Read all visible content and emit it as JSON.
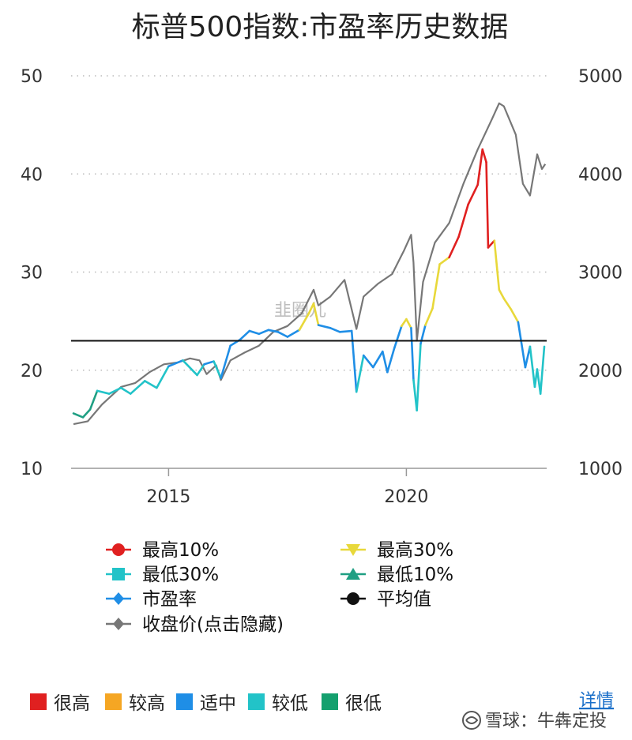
{
  "chart_data": {
    "type": "line",
    "title": "标普500指数:市盈率历史数据",
    "x_ticks": [
      2015,
      2020
    ],
    "x_range": [
      2012.95,
      2022.95
    ],
    "y_left": {
      "ticks": [
        "50",
        "40",
        "30",
        "20",
        "10"
      ],
      "range": [
        10,
        50
      ]
    },
    "y_right": {
      "ticks": [
        "5000",
        "4000",
        "3000",
        "2000",
        "1000"
      ],
      "range": [
        1000,
        5000
      ]
    },
    "grid": true,
    "average_pe": 23,
    "band_thresholds": {
      "high30": 24.7,
      "high10": 32.0,
      "low30": 20.5,
      "low10": 17.0
    },
    "series": [
      {
        "name": "市盈率",
        "axis": "left",
        "x": [
          2013.0,
          2013.2,
          2013.35,
          2013.5,
          2013.75,
          2014.0,
          2014.2,
          2014.5,
          2014.75,
          2015.0,
          2015.3,
          2015.6,
          2015.75,
          2015.95,
          2016.1,
          2016.3,
          2016.5,
          2016.7,
          2016.9,
          2017.1,
          2017.3,
          2017.5,
          2017.75,
          2017.95,
          2018.05,
          2018.15,
          2018.4,
          2018.6,
          2018.85,
          2018.95,
          2019.1,
          2019.3,
          2019.5,
          2019.6,
          2019.75,
          2019.9,
          2020.0,
          2020.1,
          2020.15,
          2020.22,
          2020.3,
          2020.4,
          2020.55,
          2020.7,
          2020.9,
          2021.1,
          2021.3,
          2021.5,
          2021.6,
          2021.68,
          2021.72,
          2021.85,
          2021.95,
          2022.05,
          2022.2,
          2022.35,
          2022.5,
          2022.6,
          2022.7,
          2022.75,
          2022.82,
          2022.9
        ],
        "y": [
          15.6,
          15.2,
          16.0,
          17.9,
          17.6,
          18.2,
          17.6,
          18.9,
          18.2,
          20.4,
          21.0,
          19.5,
          20.6,
          20.9,
          19.2,
          22.5,
          23.1,
          24.0,
          23.7,
          24.1,
          23.9,
          23.4,
          24.1,
          25.8,
          26.8,
          24.6,
          24.3,
          23.9,
          24.0,
          17.8,
          21.5,
          20.3,
          21.9,
          19.8,
          22.3,
          24.5,
          25.2,
          24.3,
          19.0,
          15.9,
          22.7,
          24.6,
          26.3,
          30.8,
          31.5,
          33.6,
          36.9,
          38.9,
          42.5,
          41.2,
          32.5,
          33.2,
          28.2,
          27.3,
          26.2,
          24.9,
          20.3,
          22.4,
          18.3,
          20.1,
          17.6,
          22.4
        ]
      },
      {
        "name": "收盘价(点击隐藏)",
        "axis": "right",
        "x": [
          2013.0,
          2013.3,
          2013.6,
          2014.0,
          2014.3,
          2014.6,
          2014.9,
          2015.2,
          2015.45,
          2015.65,
          2015.8,
          2016.0,
          2016.1,
          2016.3,
          2016.6,
          2016.9,
          2017.2,
          2017.5,
          2017.8,
          2018.05,
          2018.15,
          2018.4,
          2018.7,
          2018.95,
          2019.1,
          2019.4,
          2019.7,
          2019.95,
          2020.1,
          2020.15,
          2020.22,
          2020.35,
          2020.6,
          2020.9,
          2021.2,
          2021.5,
          2021.8,
          2021.95,
          2022.05,
          2022.3,
          2022.45,
          2022.6,
          2022.75,
          2022.85,
          2022.92
        ],
        "y": [
          1450,
          1480,
          1650,
          1830,
          1870,
          1980,
          2060,
          2080,
          2120,
          2100,
          1960,
          2050,
          1900,
          2100,
          2180,
          2250,
          2390,
          2450,
          2580,
          2820,
          2660,
          2750,
          2920,
          2420,
          2750,
          2880,
          2980,
          3220,
          3380,
          3100,
          2300,
          2900,
          3300,
          3500,
          3900,
          4250,
          4560,
          4720,
          4690,
          4400,
          3900,
          3780,
          4200,
          4050,
          4100
        ]
      }
    ],
    "legend": [
      {
        "label": "最高10%",
        "color": "#e02020",
        "marker": "circle"
      },
      {
        "label": "最高30%",
        "color": "#e8d83a",
        "marker": "triangle-down"
      },
      {
        "label": "最低30%",
        "color": "#22c3c8",
        "marker": "square"
      },
      {
        "label": "最低10%",
        "color": "#1f9f83",
        "marker": "triangle-up"
      },
      {
        "label": "市盈率",
        "color": "#1f8ee6",
        "marker": "diamond"
      },
      {
        "label": "平均值",
        "color": "#111111",
        "marker": "circle"
      },
      {
        "label": "收盘价(点击隐藏)",
        "color": "#777777",
        "marker": "diamond"
      }
    ],
    "zones": [
      {
        "label": "很高",
        "color": "#e02020"
      },
      {
        "label": "较高",
        "color": "#f5a623"
      },
      {
        "label": "适中",
        "color": "#1f8ee6"
      },
      {
        "label": "较低",
        "color": "#22c3c8"
      },
      {
        "label": "很低",
        "color": "#14a06e"
      }
    ]
  },
  "watermark_center": "韭圈儿",
  "details_link": "详情",
  "footer_credit": "雪球：牛犇定投"
}
